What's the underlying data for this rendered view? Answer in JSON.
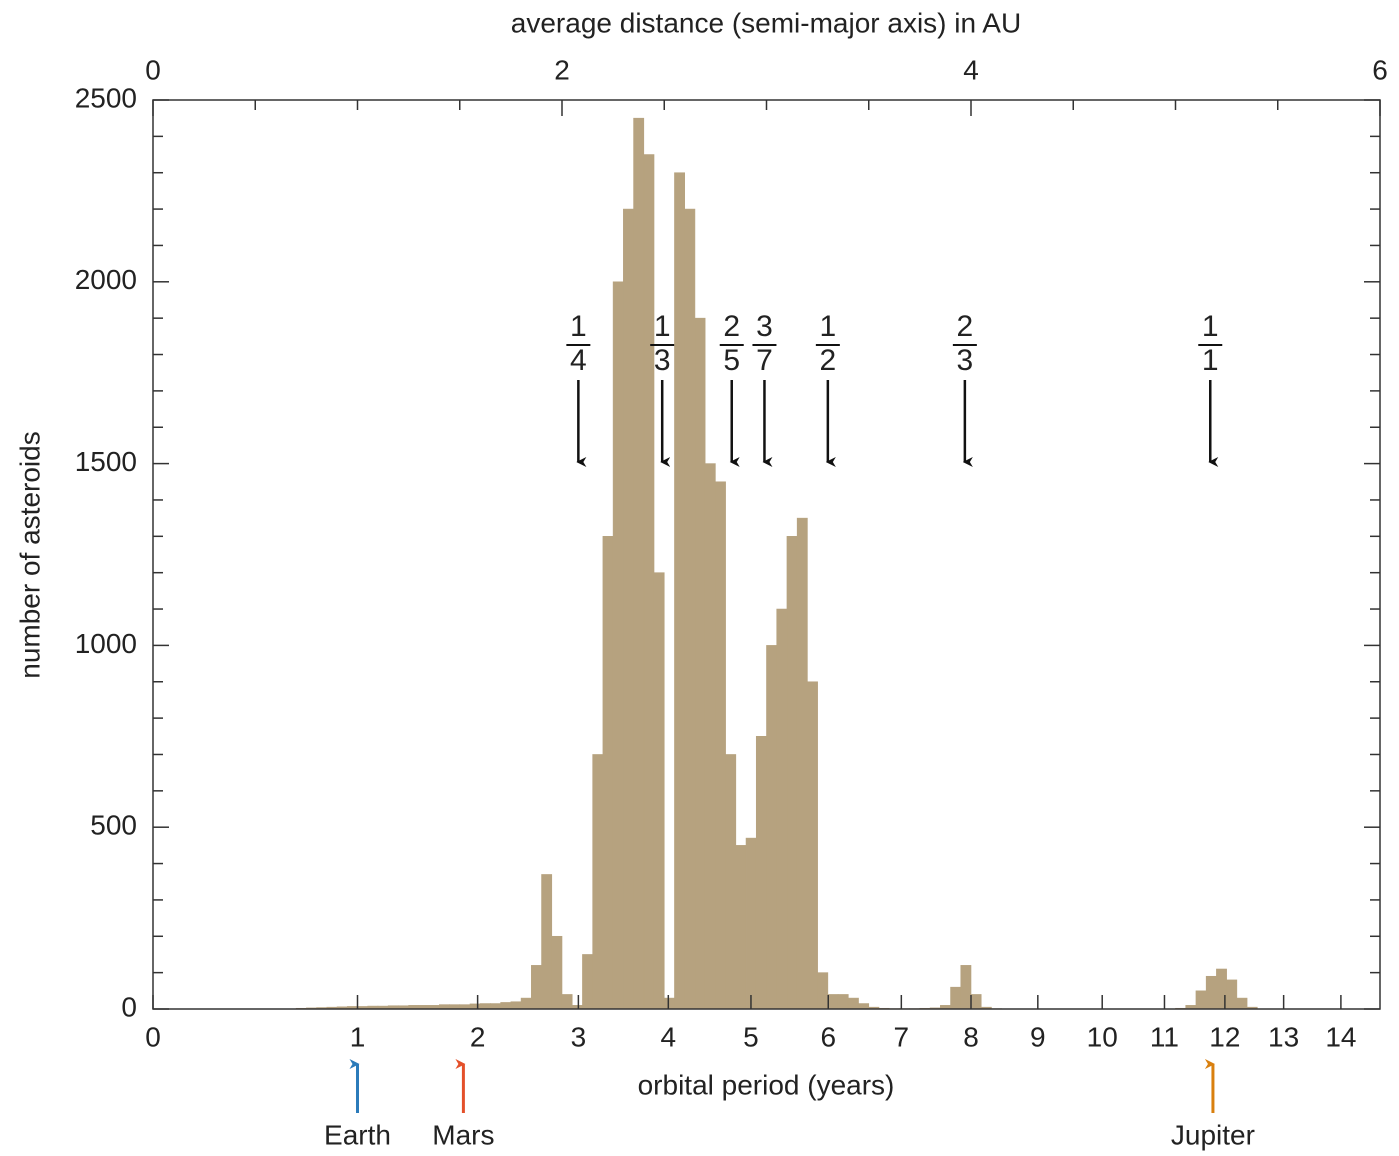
{
  "chart_data": {
    "type": "histogram",
    "xlabel": "average distance (semi-major axis) in AU",
    "ylabel": "number of asteroids",
    "color": "#b6a27f",
    "bins": [
      0.7,
      0.75,
      0.8,
      0.85,
      0.9,
      0.95,
      1.0,
      1.05,
      1.1,
      1.15,
      1.2,
      1.25,
      1.3,
      1.35,
      1.4,
      1.45,
      1.5,
      1.55,
      1.6,
      1.65,
      1.7,
      1.75,
      1.8,
      1.85,
      1.9,
      1.95,
      2.0,
      2.05,
      2.1,
      2.15,
      2.2,
      2.25,
      2.3,
      2.35,
      2.4,
      2.45,
      2.5,
      2.55,
      2.6,
      2.65,
      2.7,
      2.75,
      2.8,
      2.85,
      2.9,
      2.95,
      3.0,
      3.05,
      3.1,
      3.15,
      3.2,
      3.25,
      3.3,
      3.35,
      3.4,
      3.45,
      3.5,
      3.55,
      3.6,
      3.65,
      3.7,
      3.75,
      3.8,
      3.85,
      3.9,
      3.95,
      4.0,
      4.05,
      4.1,
      4.15,
      4.2,
      4.25,
      4.3,
      4.35,
      4.4,
      4.45,
      4.5,
      4.55,
      4.6,
      4.65,
      4.7,
      4.75,
      4.8,
      4.85,
      4.9,
      4.95,
      5.0,
      5.05,
      5.1,
      5.15,
      5.2,
      5.25,
      5.3,
      5.35,
      5.4
    ],
    "counts": [
      2,
      3,
      4,
      5,
      6,
      7,
      7,
      8,
      8,
      9,
      9,
      10,
      10,
      10,
      12,
      12,
      12,
      14,
      15,
      15,
      18,
      20,
      30,
      120,
      370,
      200,
      40,
      10,
      150,
      700,
      1300,
      2000,
      2200,
      2450,
      2350,
      1200,
      30,
      2300,
      2200,
      1900,
      1500,
      1450,
      700,
      450,
      470,
      750,
      1000,
      1100,
      1300,
      1350,
      900,
      100,
      40,
      40,
      30,
      15,
      5,
      2,
      1,
      1,
      1,
      2,
      3,
      10,
      60,
      120,
      40,
      5,
      1,
      0,
      0,
      0,
      0,
      0,
      0,
      0,
      0,
      0,
      0,
      0,
      0,
      0,
      0,
      0,
      0,
      0,
      2,
      10,
      50,
      90,
      110,
      80,
      30,
      5
    ],
    "xlim": [
      0,
      6
    ],
    "xticks": [
      0,
      2,
      4,
      6
    ],
    "xminor_ticks": [
      0.5,
      1,
      1.5,
      2.5,
      3,
      3.5,
      4.5,
      5,
      5.5
    ],
    "ylim": [
      0,
      2500
    ],
    "yticks": [
      0,
      500,
      1000,
      1500,
      2000,
      2500
    ],
    "yminor_ticks": [
      100,
      200,
      300,
      400,
      600,
      700,
      800,
      900,
      1100,
      1200,
      1300,
      1400,
      1600,
      1700,
      1800,
      1900,
      2100,
      2200,
      2300,
      2400
    ],
    "period_axis": {
      "label": "orbital period (years)",
      "ticks": [
        0,
        1,
        2,
        3,
        4,
        5,
        6,
        7,
        8,
        9,
        10,
        11,
        12,
        13,
        14
      ]
    },
    "resonances": [
      {
        "numerator": 1,
        "denominator": 4,
        "a": 2.08
      },
      {
        "numerator": 1,
        "denominator": 3,
        "a": 2.49
      },
      {
        "numerator": 2,
        "denominator": 5,
        "a": 2.83
      },
      {
        "numerator": 3,
        "denominator": 7,
        "a": 2.99
      },
      {
        "numerator": 1,
        "denominator": 2,
        "a": 3.3
      },
      {
        "numerator": 2,
        "denominator": 3,
        "a": 3.97
      },
      {
        "numerator": 1,
        "denominator": 1,
        "a": 5.17
      }
    ],
    "planets": [
      {
        "name": "Earth",
        "period": 1,
        "color": "#2b7bba"
      },
      {
        "name": "Mars",
        "period": 1.87,
        "color": "#e4502a"
      },
      {
        "name": "Jupiter",
        "period": 11.8,
        "color": "#d9800f"
      }
    ]
  }
}
